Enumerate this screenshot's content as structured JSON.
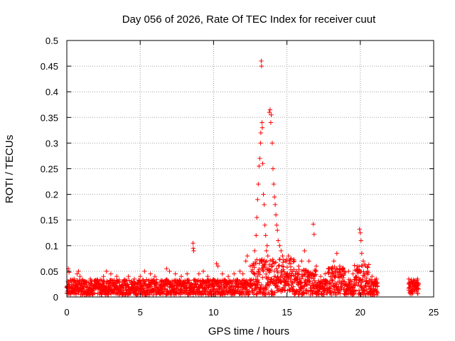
{
  "chart_data": {
    "type": "scatter",
    "title": "Day 056 of 2026, Rate Of TEC Index for receiver cuut",
    "xlabel": "GPS time / hours",
    "ylabel": "ROTI / TECUs",
    "xlim": [
      0,
      25
    ],
    "ylim": [
      0,
      0.5
    ],
    "xticks": [
      0,
      5,
      10,
      15,
      20,
      25
    ],
    "yticks": [
      0,
      0.05,
      0.1,
      0.15,
      0.2,
      0.25,
      0.3,
      0.35,
      0.4,
      0.45,
      0.5
    ],
    "grid": true,
    "marker": "+",
    "colors": {
      "series": "#ff0000",
      "grid": "#a0a0a0",
      "axes": "#000000"
    },
    "series": [
      {
        "name": "ROTI",
        "points": [
          [
            0.1,
            0.055
          ],
          [
            0.15,
            0.048
          ],
          [
            0.3,
            0.03
          ],
          [
            0.5,
            0.035
          ],
          [
            0.7,
            0.045
          ],
          [
            0.8,
            0.05
          ],
          [
            0.9,
            0.04
          ],
          [
            1.2,
            0.03
          ],
          [
            1.6,
            0.035
          ],
          [
            2.0,
            0.03
          ],
          [
            2.5,
            0.04
          ],
          [
            2.7,
            0.05
          ],
          [
            3.0,
            0.045
          ],
          [
            3.4,
            0.04
          ],
          [
            3.8,
            0.03
          ],
          [
            4.2,
            0.04
          ],
          [
            4.6,
            0.035
          ],
          [
            5.0,
            0.04
          ],
          [
            5.3,
            0.05
          ],
          [
            5.7,
            0.045
          ],
          [
            6.0,
            0.04
          ],
          [
            6.4,
            0.03
          ],
          [
            6.8,
            0.055
          ],
          [
            7.0,
            0.05
          ],
          [
            7.4,
            0.045
          ],
          [
            7.8,
            0.04
          ],
          [
            8.2,
            0.045
          ],
          [
            8.6,
            0.105
          ],
          [
            8.62,
            0.095
          ],
          [
            8.65,
            0.09
          ],
          [
            9.0,
            0.045
          ],
          [
            9.3,
            0.05
          ],
          [
            9.6,
            0.04
          ],
          [
            10.2,
            0.065
          ],
          [
            10.3,
            0.06
          ],
          [
            10.6,
            0.045
          ],
          [
            11.0,
            0.04
          ],
          [
            11.4,
            0.045
          ],
          [
            11.8,
            0.05
          ],
          [
            12.0,
            0.045
          ],
          [
            12.2,
            0.07
          ],
          [
            12.3,
            0.08
          ],
          [
            12.5,
            0.06
          ],
          [
            12.8,
            0.09
          ],
          [
            12.9,
            0.12
          ],
          [
            12.95,
            0.155
          ],
          [
            13.0,
            0.19
          ],
          [
            13.05,
            0.22
          ],
          [
            13.1,
            0.255
          ],
          [
            13.15,
            0.27
          ],
          [
            13.2,
            0.3
          ],
          [
            13.22,
            0.32
          ],
          [
            13.25,
            0.46
          ],
          [
            13.27,
            0.45
          ],
          [
            13.3,
            0.34
          ],
          [
            13.32,
            0.33
          ],
          [
            13.35,
            0.26
          ],
          [
            13.4,
            0.2
          ],
          [
            13.45,
            0.18
          ],
          [
            13.5,
            0.14
          ],
          [
            13.55,
            0.12
          ],
          [
            13.6,
            0.09
          ],
          [
            13.65,
            0.1
          ],
          [
            13.7,
            0.08
          ],
          [
            13.8,
            0.36
          ],
          [
            13.85,
            0.365
          ],
          [
            13.9,
            0.34
          ],
          [
            13.93,
            0.355
          ],
          [
            14.0,
            0.3
          ],
          [
            14.05,
            0.25
          ],
          [
            14.1,
            0.22
          ],
          [
            14.15,
            0.195
          ],
          [
            14.2,
            0.18
          ],
          [
            14.25,
            0.16
          ],
          [
            14.3,
            0.14
          ],
          [
            14.35,
            0.13
          ],
          [
            14.4,
            0.11
          ],
          [
            14.5,
            0.1
          ],
          [
            14.6,
            0.09
          ],
          [
            14.7,
            0.08
          ],
          [
            14.9,
            0.07
          ],
          [
            15.1,
            0.08
          ],
          [
            15.3,
            0.075
          ],
          [
            15.5,
            0.07
          ],
          [
            15.8,
            0.06
          ],
          [
            16.0,
            0.07
          ],
          [
            16.2,
            0.09
          ],
          [
            16.5,
            0.07
          ],
          [
            16.8,
            0.142
          ],
          [
            16.85,
            0.122
          ],
          [
            17.0,
            0.06
          ],
          [
            17.3,
            0.04
          ],
          [
            17.6,
            0.045
          ],
          [
            17.9,
            0.055
          ],
          [
            18.2,
            0.07
          ],
          [
            18.4,
            0.085
          ],
          [
            18.6,
            0.06
          ],
          [
            18.9,
            0.045
          ],
          [
            19.2,
            0.05
          ],
          [
            19.5,
            0.045
          ],
          [
            19.8,
            0.06
          ],
          [
            19.95,
            0.132
          ],
          [
            20.0,
            0.125
          ],
          [
            20.05,
            0.11
          ],
          [
            20.1,
            0.085
          ],
          [
            20.2,
            0.07
          ],
          [
            20.5,
            0.05
          ],
          [
            20.8,
            0.04
          ],
          [
            21.0,
            0.03
          ],
          [
            21.1,
            0.035
          ],
          [
            23.3,
            0.035
          ],
          [
            23.6,
            0.03
          ],
          [
            23.9,
            0.035
          ]
        ]
      }
    ]
  }
}
